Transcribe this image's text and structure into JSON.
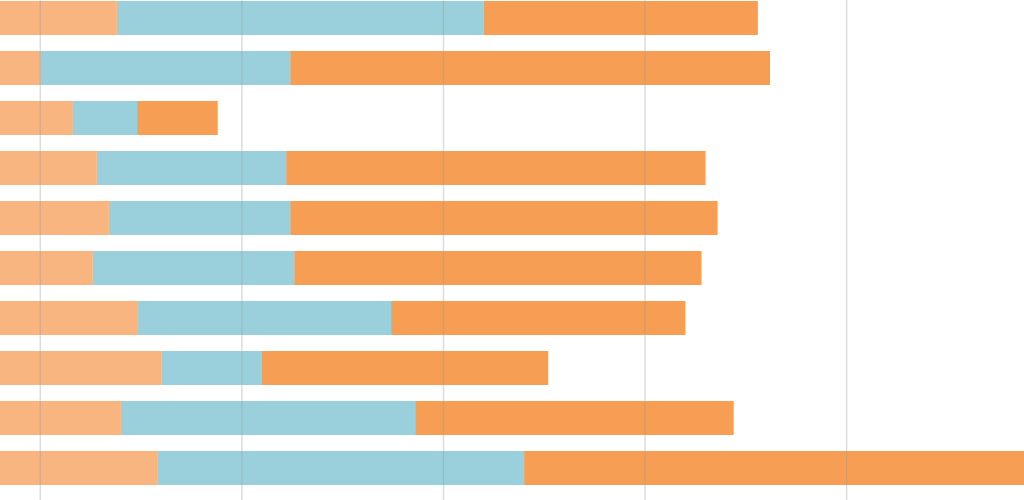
{
  "chart_data": {
    "type": "bar",
    "orientation": "horizontal",
    "stacked": true,
    "title": "",
    "xlabel": "",
    "ylabel": "",
    "xlim": [
      0,
      1270
    ],
    "grid": true,
    "gridlines_at": [
      50,
      300,
      550,
      800,
      1050
    ],
    "legend": "none",
    "categories": [
      "",
      "",
      "",
      "",
      "",
      "",
      "",
      "",
      "",
      ""
    ],
    "series": [
      {
        "color": "#f8b57f",
        "values": [
          145,
          50,
          90,
          120,
          135,
          115,
          170,
          200,
          150,
          195
        ]
      },
      {
        "color": "#9ad0dc",
        "values": [
          455,
          310,
          80,
          235,
          225,
          250,
          315,
          125,
          365,
          455
        ]
      },
      {
        "color": "#f59e54",
        "values": [
          340,
          595,
          100,
          520,
          530,
          505,
          365,
          355,
          395,
          620
        ]
      }
    ]
  }
}
